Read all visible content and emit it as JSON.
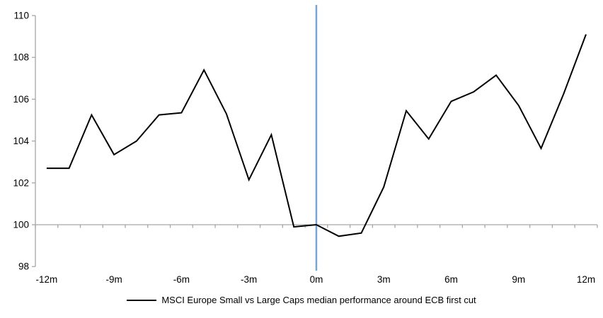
{
  "chart_data": {
    "type": "line",
    "title": "",
    "xlabel": "",
    "ylabel": "",
    "legend": "MSCI Europe Small vs Large Caps median performance around ECB first cut",
    "legend_position": "bottom-center",
    "grid": "off",
    "baseline_value": 100,
    "event_line_month": 0,
    "ylim": [
      98,
      110
    ],
    "y_ticks": [
      98,
      100,
      102,
      104,
      106,
      108,
      110
    ],
    "x_tick_months": [
      -12,
      -9,
      -6,
      -3,
      0,
      3,
      6,
      9,
      12
    ],
    "x_tick_labels": [
      "-12m",
      "-9m",
      "-6m",
      "-3m",
      "0m",
      "3m",
      "6m",
      "9m",
      "12m"
    ],
    "months": [
      -12,
      -11,
      -10,
      -9,
      -8,
      -7,
      -6,
      -5,
      -4,
      -3,
      -2,
      -1,
      0,
      1,
      2,
      3,
      4,
      5,
      6,
      7,
      8,
      9,
      10,
      11,
      12
    ],
    "series": [
      {
        "name": "MSCI Europe Small vs Large Caps median performance around ECB first cut",
        "values": [
          102.7,
          102.7,
          105.25,
          103.35,
          104.0,
          105.25,
          105.35,
          107.4,
          105.3,
          102.15,
          104.3,
          99.9,
          100.0,
          99.45,
          99.6,
          101.8,
          105.45,
          104.1,
          105.9,
          106.35,
          107.15,
          105.7,
          103.65,
          106.25,
          109.1
        ]
      }
    ],
    "colors": {
      "series_line": "#000000",
      "event_line": "#7AA4D4",
      "axis": "#A6A6A6",
      "tick_label": "#000000"
    }
  }
}
